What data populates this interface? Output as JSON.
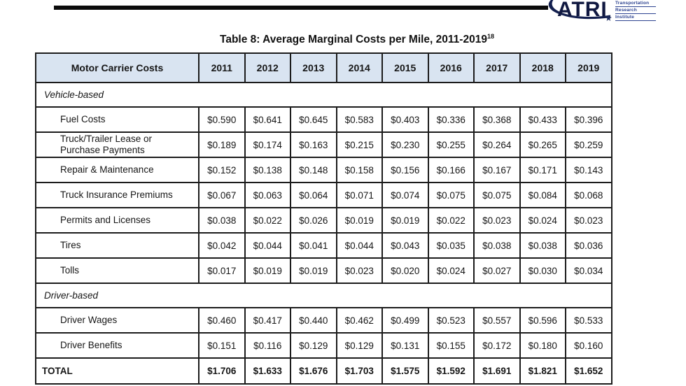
{
  "document": {
    "title": "Table 8: Average Marginal Costs per Mile, 2011-2019",
    "title_footnote": "18"
  },
  "logo": {
    "acronym": "ATRI",
    "words": [
      "Transportation",
      "Research",
      "Institute"
    ]
  },
  "colors": {
    "header_bg": "#d9e4f1",
    "table_border": "#1c1c1c",
    "logo_navy": "#14204f",
    "logo_blue": "#2d4390"
  },
  "table": {
    "columns": [
      "Motor Carrier Costs",
      "2011",
      "2012",
      "2013",
      "2014",
      "2015",
      "2016",
      "2017",
      "2018",
      "2019"
    ],
    "rows": [
      {
        "type": "section",
        "label": "Vehicle-based"
      },
      {
        "type": "data",
        "label": "Fuel Costs",
        "values": [
          "$0.590",
          "$0.641",
          "$0.645",
          "$0.583",
          "$0.403",
          "$0.336",
          "$0.368",
          "$0.433",
          "$0.396"
        ]
      },
      {
        "type": "data",
        "label": "Truck/Trailer Lease or Purchase Payments",
        "values": [
          "$0.189",
          "$0.174",
          "$0.163",
          "$0.215",
          "$0.230",
          "$0.255",
          "$0.264",
          "$0.265",
          "$0.259"
        ]
      },
      {
        "type": "data",
        "label": "Repair & Maintenance",
        "values": [
          "$0.152",
          "$0.138",
          "$0.148",
          "$0.158",
          "$0.156",
          "$0.166",
          "$0.167",
          "$0.171",
          "$0.143"
        ]
      },
      {
        "type": "data",
        "label": "Truck Insurance Premiums",
        "values": [
          "$0.067",
          "$0.063",
          "$0.064",
          "$0.071",
          "$0.074",
          "$0.075",
          "$0.075",
          "$0.084",
          "$0.068"
        ]
      },
      {
        "type": "data",
        "label": "Permits and Licenses",
        "values": [
          "$0.038",
          "$0.022",
          "$0.026",
          "$0.019",
          "$0.019",
          "$0.022",
          "$0.023",
          "$0.024",
          "$0.023"
        ]
      },
      {
        "type": "data",
        "label": "Tires",
        "values": [
          "$0.042",
          "$0.044",
          "$0.041",
          "$0.044",
          "$0.043",
          "$0.035",
          "$0.038",
          "$0.038",
          "$0.036"
        ]
      },
      {
        "type": "data",
        "label": "Tolls",
        "values": [
          "$0.017",
          "$0.019",
          "$0.019",
          "$0.023",
          "$0.020",
          "$0.024",
          "$0.027",
          "$0.030",
          "$0.034"
        ]
      },
      {
        "type": "section",
        "label": "Driver-based"
      },
      {
        "type": "data",
        "label": "Driver Wages",
        "values": [
          "$0.460",
          "$0.417",
          "$0.440",
          "$0.462",
          "$0.499",
          "$0.523",
          "$0.557",
          "$0.596",
          "$0.533"
        ]
      },
      {
        "type": "data",
        "label": "Driver Benefits",
        "values": [
          "$0.151",
          "$0.116",
          "$0.129",
          "$0.129",
          "$0.131",
          "$0.155",
          "$0.172",
          "$0.180",
          "$0.160"
        ]
      },
      {
        "type": "total",
        "label": "TOTAL",
        "values": [
          "$1.706",
          "$1.633",
          "$1.676",
          "$1.703",
          "$1.575",
          "$1.592",
          "$1.691",
          "$1.821",
          "$1.652"
        ]
      }
    ]
  },
  "chart_data": {
    "type": "table",
    "title": "Table 8: Average Marginal Costs per Mile, 2011-2019",
    "categories": [
      "2011",
      "2012",
      "2013",
      "2014",
      "2015",
      "2016",
      "2017",
      "2018",
      "2019"
    ],
    "series": [
      {
        "name": "Fuel Costs",
        "group": "Vehicle-based",
        "values": [
          0.59,
          0.641,
          0.645,
          0.583,
          0.403,
          0.336,
          0.368,
          0.433,
          0.396
        ]
      },
      {
        "name": "Truck/Trailer Lease or Purchase Payments",
        "group": "Vehicle-based",
        "values": [
          0.189,
          0.174,
          0.163,
          0.215,
          0.23,
          0.255,
          0.264,
          0.265,
          0.259
        ]
      },
      {
        "name": "Repair & Maintenance",
        "group": "Vehicle-based",
        "values": [
          0.152,
          0.138,
          0.148,
          0.158,
          0.156,
          0.166,
          0.167,
          0.171,
          0.143
        ]
      },
      {
        "name": "Truck Insurance Premiums",
        "group": "Vehicle-based",
        "values": [
          0.067,
          0.063,
          0.064,
          0.071,
          0.074,
          0.075,
          0.075,
          0.084,
          0.068
        ]
      },
      {
        "name": "Permits and Licenses",
        "group": "Vehicle-based",
        "values": [
          0.038,
          0.022,
          0.026,
          0.019,
          0.019,
          0.022,
          0.023,
          0.024,
          0.023
        ]
      },
      {
        "name": "Tires",
        "group": "Vehicle-based",
        "values": [
          0.042,
          0.044,
          0.041,
          0.044,
          0.043,
          0.035,
          0.038,
          0.038,
          0.036
        ]
      },
      {
        "name": "Tolls",
        "group": "Vehicle-based",
        "values": [
          0.017,
          0.019,
          0.019,
          0.023,
          0.02,
          0.024,
          0.027,
          0.03,
          0.034
        ]
      },
      {
        "name": "Driver Wages",
        "group": "Driver-based",
        "values": [
          0.46,
          0.417,
          0.44,
          0.462,
          0.499,
          0.523,
          0.557,
          0.596,
          0.533
        ]
      },
      {
        "name": "Driver Benefits",
        "group": "Driver-based",
        "values": [
          0.151,
          0.116,
          0.129,
          0.129,
          0.131,
          0.155,
          0.172,
          0.18,
          0.16
        ]
      },
      {
        "name": "TOTAL",
        "group": "",
        "values": [
          1.706,
          1.633,
          1.676,
          1.703,
          1.575,
          1.592,
          1.691,
          1.821,
          1.652
        ]
      }
    ]
  }
}
